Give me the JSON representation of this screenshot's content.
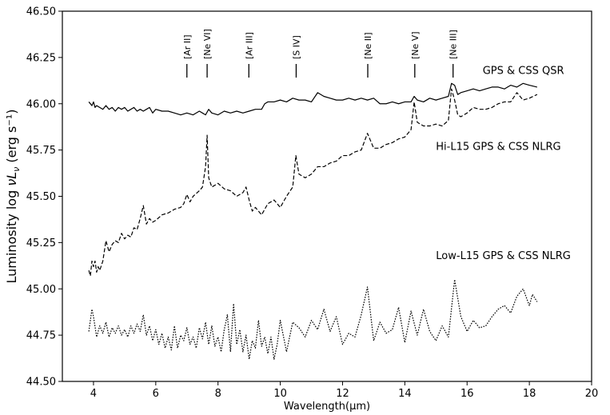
{
  "chart_data": {
    "type": "line",
    "xlabel": "Wavelength(μm)",
    "ylabel": "Luminosity  log νL_ν (erg s⁻¹)",
    "xlim": [
      3,
      20
    ],
    "ylim": [
      44.5,
      46.5
    ],
    "xticks": [
      "4",
      "6",
      "8",
      "10",
      "12",
      "14",
      "16",
      "18",
      "20"
    ],
    "yticks": [
      "44.50",
      "44.75",
      "45.00",
      "45.25",
      "45.50",
      "45.75",
      "46.00",
      "46.25",
      "46.50"
    ],
    "grid": false,
    "line_labels": [
      {
        "name": "Ar II",
        "text": "[Ar II]",
        "x": 7.0
      },
      {
        "name": "Ne VI",
        "text": "[Ne VI]",
        "x": 7.65
      },
      {
        "name": "Ar III",
        "text": "[Ar III]",
        "x": 8.99
      },
      {
        "name": "S IV",
        "text": "[S IV]",
        "x": 10.51
      },
      {
        "name": "Ne II",
        "text": "[Ne II]",
        "x": 12.81
      },
      {
        "name": "Ne V",
        "text": "[Ne V]",
        "x": 14.32
      },
      {
        "name": "Ne III",
        "text": "[Ne III]",
        "x": 15.55
      }
    ],
    "series": [
      {
        "name": "GPS & CSS QSR",
        "style": "solid",
        "label_pos": [
          16.5,
          46.16
        ],
        "x": [
          3.85,
          3.95,
          4.0,
          4.05,
          4.1,
          4.2,
          4.3,
          4.4,
          4.5,
          4.6,
          4.7,
          4.8,
          4.9,
          5.0,
          5.1,
          5.2,
          5.3,
          5.4,
          5.5,
          5.6,
          5.7,
          5.8,
          5.9,
          6.0,
          6.2,
          6.4,
          6.6,
          6.8,
          7.0,
          7.2,
          7.4,
          7.6,
          7.7,
          7.8,
          8.0,
          8.2,
          8.4,
          8.6,
          8.8,
          9.0,
          9.2,
          9.4,
          9.5,
          9.6,
          9.8,
          10.0,
          10.2,
          10.4,
          10.6,
          10.8,
          11.0,
          11.2,
          11.4,
          11.6,
          11.8,
          12.0,
          12.2,
          12.4,
          12.6,
          12.8,
          13.0,
          13.2,
          13.4,
          13.6,
          13.8,
          14.0,
          14.2,
          14.3,
          14.4,
          14.6,
          14.8,
          15.0,
          15.2,
          15.4,
          15.5,
          15.6,
          15.7,
          15.8,
          16.0,
          16.2,
          16.4,
          16.6,
          16.8,
          17.0,
          17.2,
          17.4,
          17.6,
          17.8,
          18.0,
          18.25
        ],
        "y": [
          46.01,
          45.99,
          46.01,
          45.98,
          45.99,
          45.98,
          45.97,
          45.99,
          45.97,
          45.98,
          45.96,
          45.98,
          45.97,
          45.98,
          45.96,
          45.97,
          45.98,
          45.96,
          45.97,
          45.96,
          45.97,
          45.98,
          45.95,
          45.97,
          45.96,
          45.96,
          45.95,
          45.94,
          45.95,
          45.94,
          45.96,
          45.94,
          45.97,
          45.95,
          45.94,
          45.96,
          45.95,
          45.96,
          45.95,
          45.96,
          45.97,
          45.97,
          46.0,
          46.01,
          46.01,
          46.02,
          46.01,
          46.03,
          46.02,
          46.02,
          46.01,
          46.06,
          46.04,
          46.03,
          46.02,
          46.02,
          46.03,
          46.02,
          46.03,
          46.02,
          46.03,
          46.0,
          46.0,
          46.01,
          46.0,
          46.01,
          46.01,
          46.04,
          46.02,
          46.01,
          46.03,
          46.02,
          46.03,
          46.04,
          46.11,
          46.1,
          46.05,
          46.06,
          46.07,
          46.08,
          46.07,
          46.08,
          46.09,
          46.09,
          46.08,
          46.1,
          46.09,
          46.11,
          46.1,
          46.09
        ]
      },
      {
        "name": "Hi-L15 GPS & CSS NLRG",
        "style": "dashed",
        "label_pos": [
          15.0,
          45.75
        ],
        "x": [
          3.85,
          3.9,
          3.95,
          4.0,
          4.05,
          4.1,
          4.15,
          4.2,
          4.3,
          4.4,
          4.5,
          4.6,
          4.7,
          4.8,
          4.9,
          5.0,
          5.1,
          5.2,
          5.3,
          5.4,
          5.5,
          5.6,
          5.7,
          5.8,
          5.9,
          6.0,
          6.2,
          6.4,
          6.6,
          6.8,
          6.9,
          7.0,
          7.1,
          7.2,
          7.4,
          7.5,
          7.6,
          7.65,
          7.7,
          7.8,
          8.0,
          8.2,
          8.4,
          8.6,
          8.8,
          8.9,
          9.0,
          9.1,
          9.2,
          9.4,
          9.6,
          9.8,
          10.0,
          10.2,
          10.4,
          10.5,
          10.6,
          10.8,
          11.0,
          11.2,
          11.4,
          11.6,
          11.8,
          12.0,
          12.2,
          12.4,
          12.6,
          12.8,
          12.9,
          13.0,
          13.2,
          13.4,
          13.6,
          13.8,
          14.0,
          14.2,
          14.3,
          14.4,
          14.6,
          14.8,
          15.0,
          15.2,
          15.4,
          15.5,
          15.6,
          15.7,
          15.8,
          16.0,
          16.2,
          16.4,
          16.6,
          16.8,
          17.0,
          17.2,
          17.4,
          17.6,
          17.8,
          18.0,
          18.25
        ],
        "y": [
          45.1,
          45.07,
          45.15,
          45.12,
          45.15,
          45.09,
          45.12,
          45.1,
          45.15,
          45.26,
          45.2,
          45.24,
          45.26,
          45.25,
          45.3,
          45.27,
          45.29,
          45.28,
          45.33,
          45.32,
          45.38,
          45.45,
          45.35,
          45.38,
          45.36,
          45.37,
          45.4,
          45.41,
          45.43,
          45.44,
          45.46,
          45.51,
          45.47,
          45.5,
          45.53,
          45.55,
          45.66,
          45.83,
          45.6,
          45.55,
          45.57,
          45.54,
          45.53,
          45.5,
          45.52,
          45.55,
          45.48,
          45.42,
          45.44,
          45.4,
          45.46,
          45.48,
          45.44,
          45.5,
          45.55,
          45.72,
          45.62,
          45.6,
          45.62,
          45.66,
          45.66,
          45.68,
          45.69,
          45.72,
          45.72,
          45.74,
          45.75,
          45.84,
          45.8,
          45.76,
          45.76,
          45.78,
          45.79,
          45.81,
          45.82,
          45.86,
          46.01,
          45.9,
          45.88,
          45.88,
          45.89,
          45.88,
          45.91,
          46.08,
          46.02,
          45.94,
          45.93,
          45.95,
          45.98,
          45.97,
          45.97,
          45.98,
          46.0,
          46.01,
          46.01,
          46.06,
          46.02,
          46.03,
          46.05
        ]
      },
      {
        "name": "Low-L15 GPS & CSS NLRG",
        "style": "dotted",
        "label_pos": [
          15.0,
          45.16
        ],
        "x": [
          3.85,
          3.95,
          4.0,
          4.1,
          4.2,
          4.3,
          4.4,
          4.5,
          4.6,
          4.7,
          4.8,
          4.9,
          5.0,
          5.1,
          5.2,
          5.3,
          5.4,
          5.5,
          5.6,
          5.7,
          5.8,
          5.9,
          6.0,
          6.1,
          6.2,
          6.3,
          6.4,
          6.5,
          6.6,
          6.7,
          6.8,
          6.9,
          7.0,
          7.1,
          7.2,
          7.3,
          7.4,
          7.5,
          7.6,
          7.7,
          7.8,
          7.9,
          8.0,
          8.1,
          8.2,
          8.3,
          8.4,
          8.5,
          8.6,
          8.7,
          8.8,
          8.9,
          9.0,
          9.1,
          9.2,
          9.3,
          9.4,
          9.5,
          9.6,
          9.7,
          9.8,
          9.9,
          10.0,
          10.2,
          10.4,
          10.6,
          10.8,
          11.0,
          11.2,
          11.4,
          11.6,
          11.8,
          12.0,
          12.2,
          12.4,
          12.6,
          12.8,
          13.0,
          13.2,
          13.4,
          13.6,
          13.8,
          14.0,
          14.2,
          14.4,
          14.6,
          14.8,
          15.0,
          15.2,
          15.4,
          15.6,
          15.8,
          16.0,
          16.2,
          16.4,
          16.6,
          16.8,
          17.0,
          17.2,
          17.4,
          17.6,
          17.8,
          18.0,
          18.1,
          18.25
        ],
        "y": [
          44.77,
          44.89,
          44.85,
          44.74,
          44.8,
          44.76,
          44.82,
          44.74,
          44.79,
          44.76,
          44.8,
          44.75,
          44.78,
          44.74,
          44.8,
          44.76,
          44.81,
          44.77,
          44.86,
          44.75,
          44.8,
          44.72,
          44.78,
          44.7,
          44.76,
          44.68,
          44.74,
          44.67,
          44.8,
          44.68,
          44.75,
          44.72,
          44.79,
          44.7,
          44.74,
          44.68,
          44.79,
          44.73,
          44.82,
          44.7,
          44.8,
          44.69,
          44.74,
          44.66,
          44.78,
          44.86,
          44.66,
          44.92,
          44.7,
          44.78,
          44.66,
          44.75,
          44.62,
          44.72,
          44.68,
          44.83,
          44.69,
          44.74,
          44.65,
          44.74,
          44.62,
          44.7,
          44.83,
          44.66,
          44.82,
          44.79,
          44.74,
          44.83,
          44.78,
          44.89,
          44.77,
          44.85,
          44.7,
          44.76,
          44.74,
          44.86,
          45.01,
          44.72,
          44.82,
          44.76,
          44.78,
          44.9,
          44.71,
          44.88,
          44.75,
          44.89,
          44.77,
          44.72,
          44.8,
          44.74,
          45.05,
          44.85,
          44.77,
          44.83,
          44.79,
          44.8,
          44.85,
          44.89,
          44.91,
          44.87,
          44.96,
          45.0,
          44.91,
          44.97,
          44.93
        ]
      }
    ]
  }
}
